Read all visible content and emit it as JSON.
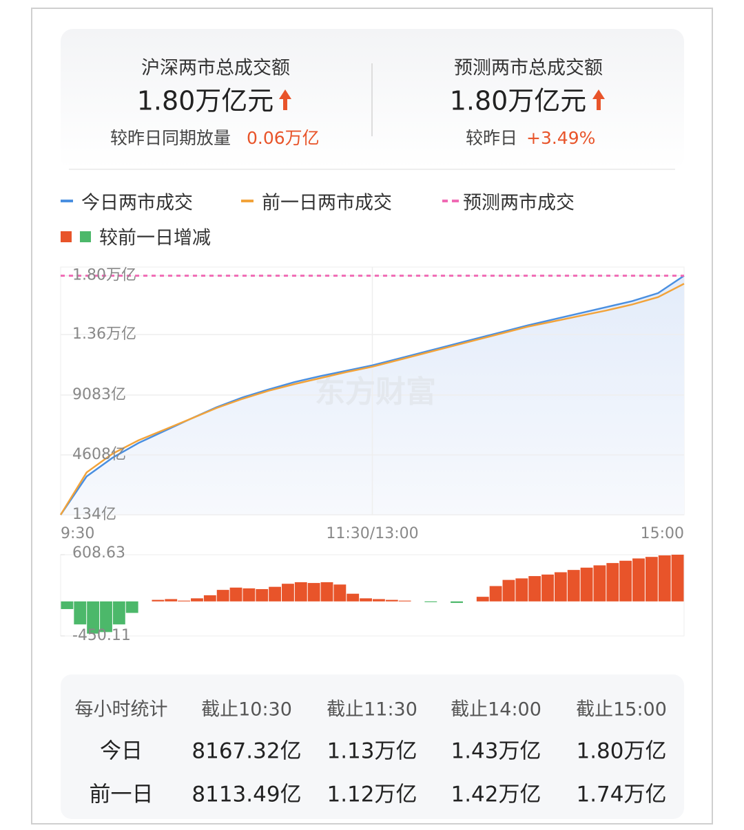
{
  "summary": {
    "left": {
      "title": "沪深两市总成交额",
      "value": "1.80万亿元",
      "compare_label": "较昨日同期放量",
      "compare_value": "0.06万亿"
    },
    "right": {
      "title": "预测两市总成交额",
      "value": "1.80万亿元",
      "compare_label": "较昨日",
      "compare_value": "+3.49%"
    }
  },
  "chart_data": [
    {
      "type": "line",
      "watermark": "东方财富",
      "categories": [
        "9:30",
        null,
        null,
        null,
        null,
        null,
        null,
        null,
        null,
        null,
        null,
        null,
        "11:30/13:00",
        null,
        null,
        null,
        null,
        null,
        null,
        null,
        null,
        null,
        null,
        null,
        "15:00"
      ],
      "series": [
        {
          "name": "今日两市成交",
          "color": "#4a8fe0",
          "values": [
            134,
            3000,
            4400,
            5500,
            6400,
            7300,
            8167,
            8900,
            9500,
            10050,
            10500,
            10900,
            11300,
            11800,
            12300,
            12800,
            13300,
            13800,
            14300,
            14750,
            15200,
            15650,
            16100,
            16700,
            18000
          ]
        },
        {
          "name": "前一日两市成交",
          "color": "#f2a33a",
          "values": [
            134,
            3300,
            4700,
            5700,
            6500,
            7300,
            8113,
            8800,
            9400,
            9900,
            10350,
            10800,
            11200,
            11700,
            12200,
            12700,
            13200,
            13700,
            14200,
            14600,
            15000,
            15400,
            15850,
            16400,
            17400
          ]
        },
        {
          "name": "预测两市成交",
          "color": "#f06ab4",
          "dashed": true,
          "values": [
            18000,
            18000,
            18000,
            18000,
            18000,
            18000,
            18000,
            18000,
            18000,
            18000,
            18000,
            18000,
            18000,
            18000,
            18000,
            18000,
            18000,
            18000,
            18000,
            18000,
            18000,
            18000,
            18000,
            18000,
            18000
          ]
        }
      ],
      "ylim": [
        134,
        18032
      ],
      "yticks": [
        {
          "value": 134,
          "label": "134亿"
        },
        {
          "value": 4608,
          "label": "4608亿"
        },
        {
          "value": 9083,
          "label": "9083亿"
        },
        {
          "value": 13600,
          "label": "1.36万亿"
        },
        {
          "value": 18000,
          "label": "1.80万亿"
        }
      ],
      "grid": true
    },
    {
      "type": "bar",
      "series": [
        {
          "name": "较前一日增减",
          "colors": [
            "#e8542a",
            "#4cb86a"
          ],
          "values": [
            -100,
            -300,
            -420,
            -400,
            -300,
            -150,
            0,
            20,
            30,
            10,
            40,
            80,
            150,
            180,
            170,
            160,
            190,
            230,
            250,
            240,
            250,
            220,
            100,
            40,
            30,
            20,
            10,
            0,
            -10,
            0,
            -20,
            0,
            60,
            200,
            280,
            300,
            330,
            350,
            380,
            410,
            440,
            470,
            500,
            530,
            560,
            580,
            600,
            608.63
          ]
        }
      ],
      "ylim": [
        -450.11,
        608.63
      ],
      "yticks": [
        -450.11,
        608.63
      ]
    }
  ],
  "table": {
    "header": [
      "每小时统计",
      "截止10:30",
      "截止11:30",
      "截止14:00",
      "截止15:00"
    ],
    "rows": [
      [
        "今日",
        "8167.32亿",
        "1.13万亿",
        "1.43万亿",
        "1.80万亿"
      ],
      [
        "前一日",
        "8113.49亿",
        "1.12万亿",
        "1.42万亿",
        "1.74万亿"
      ]
    ]
  }
}
